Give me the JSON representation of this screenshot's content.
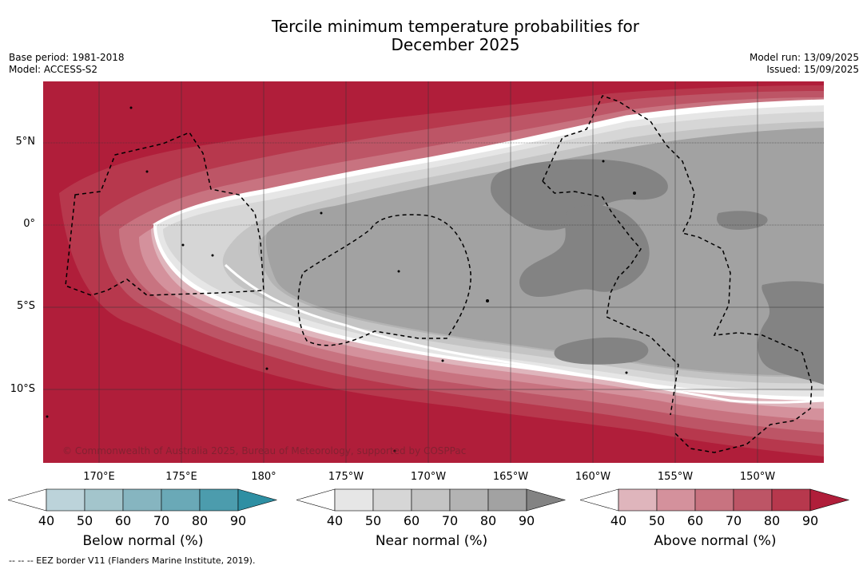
{
  "title_line1": "Tercile minimum temperature probabilities for",
  "title_line2": "December 2025",
  "base_period": "Base period: 1981-2018",
  "model": "Model: ACCESS-S2",
  "model_run": "Model run: 13/09/2025",
  "issued": "Issued: 15/09/2025",
  "copyright": "© Commonwealth of Australia 2025, Bureau of Meteorology, supported by COSPPac",
  "lat_labels": [
    "5°N",
    "0°",
    "5°S",
    "10°S"
  ],
  "lon_labels": [
    "170°E",
    "175°E",
    "180°",
    "175°W",
    "170°W",
    "165°W",
    "160°W",
    "155°W",
    "150°W"
  ],
  "colorbars": [
    {
      "label": "Below normal (%)",
      "ticks": [
        "40",
        "50",
        "60",
        "70",
        "80",
        "90"
      ],
      "colors": [
        "#ffffff",
        "#bcd3da",
        "#a3c5cc",
        "#86b5c0",
        "#6aa9b7",
        "#4c9cad",
        "#2e8fa3"
      ]
    },
    {
      "label": "Near normal (%)",
      "ticks": [
        "40",
        "50",
        "60",
        "70",
        "80",
        "90"
      ],
      "colors": [
        "#ffffff",
        "#e6e6e6",
        "#d6d6d6",
        "#c4c4c4",
        "#b3b3b3",
        "#a2a2a2",
        "#838383"
      ]
    },
    {
      "label": "Above normal (%)",
      "ticks": [
        "40",
        "50",
        "60",
        "70",
        "80",
        "90"
      ],
      "colors": [
        "#ffffff",
        "#dfb5bc",
        "#d4919c",
        "#c87380",
        "#bd5566",
        "#b7384d",
        "#b01e3a"
      ]
    }
  ],
  "footnote": "-- -- -- EEZ border V11 (Flanders Marine Institute, 2019)."
}
